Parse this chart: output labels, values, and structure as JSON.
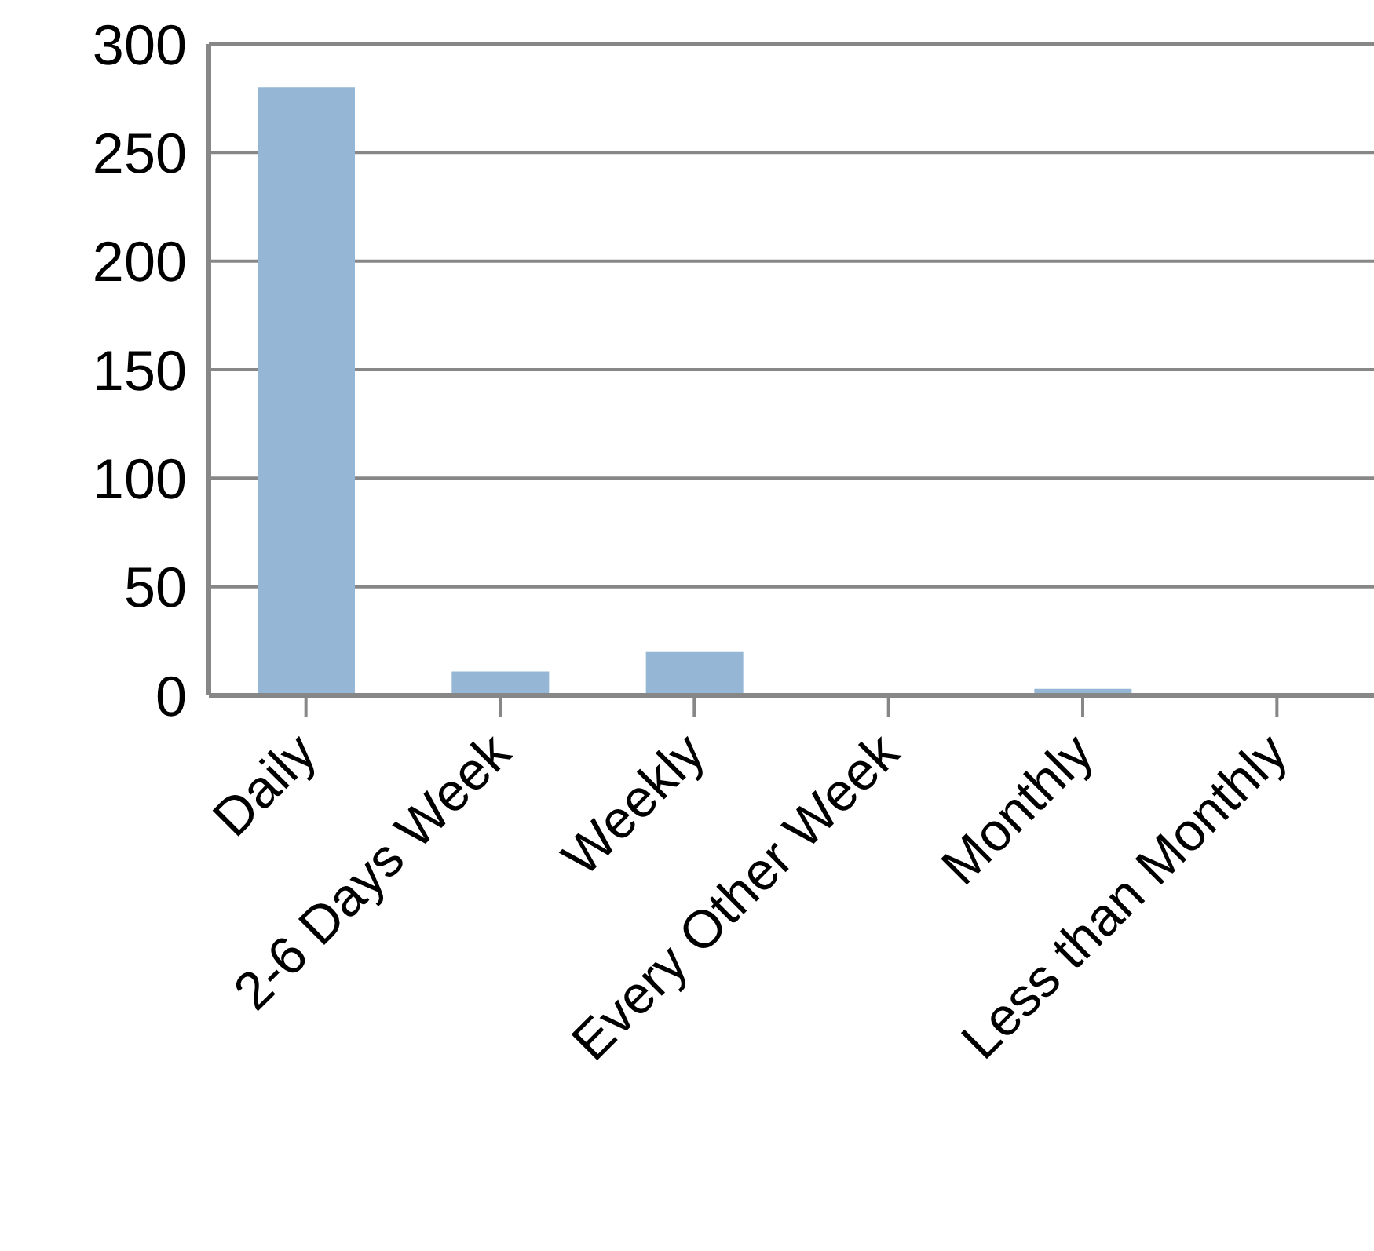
{
  "chart_data": {
    "type": "bar",
    "categories": [
      "Daily",
      "2-6 Days Week",
      "Weekly",
      "Every Other Week",
      "Monthly",
      "Less than Monthly"
    ],
    "values": [
      280,
      11,
      20,
      0,
      3,
      1
    ],
    "color": "#95b6d4",
    "ylim": [
      0,
      300
    ],
    "yticks": [
      0,
      50,
      100,
      150,
      200,
      250,
      300
    ],
    "grid": "y"
  }
}
